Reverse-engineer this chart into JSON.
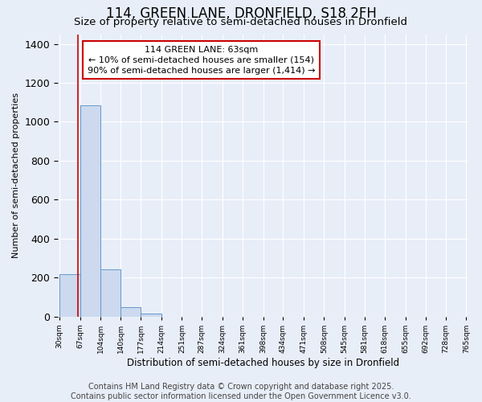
{
  "title": "114, GREEN LANE, DRONFIELD, S18 2FH",
  "subtitle": "Size of property relative to semi-detached houses in Dronfield",
  "xlabel": "Distribution of semi-detached houses by size in Dronfield",
  "ylabel": "Number of semi-detached properties",
  "bins_left": [
    30,
    67,
    104,
    140,
    177,
    214,
    251,
    287,
    324,
    361,
    398,
    434,
    471,
    508,
    545,
    581,
    618,
    655,
    692,
    728,
    765
  ],
  "bar_heights": [
    215,
    1085,
    240,
    48,
    15,
    0,
    0,
    0,
    0,
    0,
    0,
    0,
    0,
    0,
    0,
    0,
    0,
    0,
    0,
    0
  ],
  "bar_color": "#ccd9ee",
  "bar_edge_color": "#6699cc",
  "property_size": 63,
  "vline_color": "#cc0000",
  "annotation_line1": "114 GREEN LANE: 63sqm",
  "annotation_line2": "← 10% of semi-detached houses are smaller (154)",
  "annotation_line3": "90% of semi-detached houses are larger (1,414) →",
  "annotation_box_edge_color": "#cc0000",
  "ylim": [
    0,
    1450
  ],
  "yticks": [
    0,
    200,
    400,
    600,
    800,
    1000,
    1200,
    1400
  ],
  "background_color": "#e8eef8",
  "footer_text": "Contains HM Land Registry data © Crown copyright and database right 2025.\nContains public sector information licensed under the Open Government Licence v3.0.",
  "title_fontsize": 12,
  "subtitle_fontsize": 9.5,
  "footer_fontsize": 7,
  "grid_color": "#ffffff",
  "tick_labels": [
    "30sqm",
    "67sqm",
    "104sqm",
    "140sqm",
    "177sqm",
    "214sqm",
    "251sqm",
    "287sqm",
    "324sqm",
    "361sqm",
    "398sqm",
    "434sqm",
    "471sqm",
    "508sqm",
    "545sqm",
    "581sqm",
    "618sqm",
    "655sqm",
    "692sqm",
    "728sqm",
    "765sqm"
  ]
}
